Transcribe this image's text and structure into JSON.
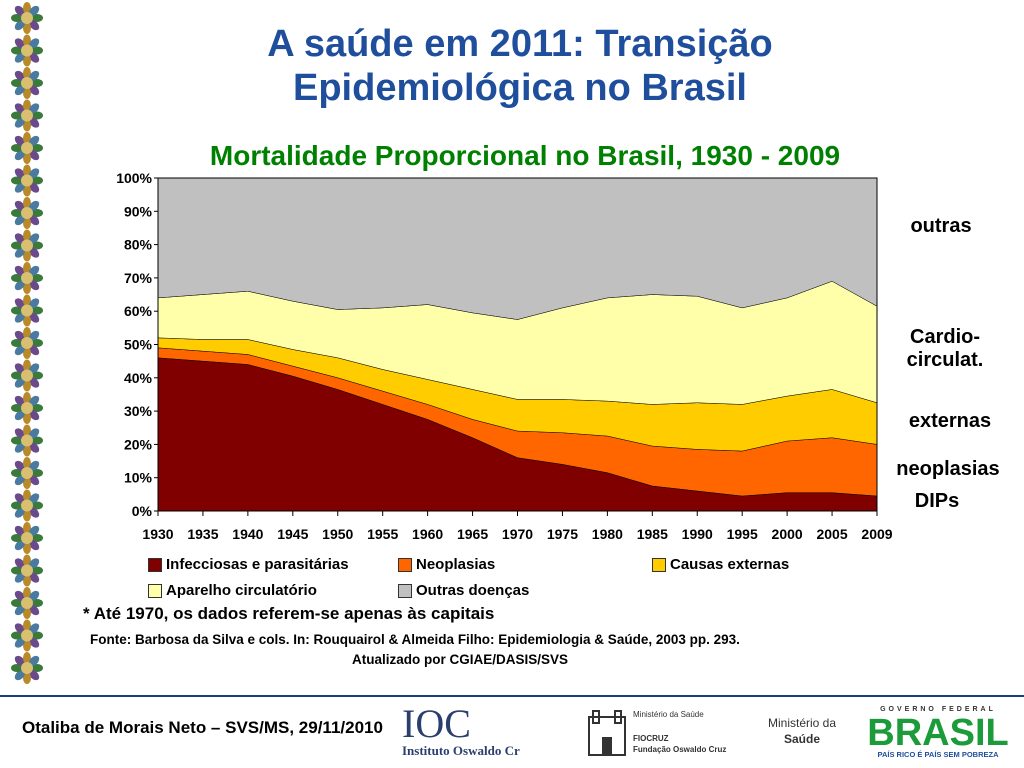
{
  "slide": {
    "title_line1": "A saúde em 2011: Transição",
    "title_line2": "Epidemiológica no Brasil",
    "chart_title": "Mortalidade Proporcional no Brasil, 1930 - 2009",
    "side_labels": [
      "outras",
      "Cardio-",
      "circulat.",
      "externas",
      "neoplasias",
      "DIPs"
    ],
    "note": "* Até 1970, os dados referem-se apenas às capitais",
    "source_line1": "Fonte: Barbosa da Silva e cols. In: Rouquairol & Almeida Filho: Epidemiologia & Saúde, 2003 pp. 293.",
    "source_line2": "Atualizado por CGIAE/DASIS/SVS",
    "footer": "Otaliba de Morais Neto – SVS/MS, 29/11/2010",
    "logos": {
      "ioc": "IOC",
      "ioc_sub": "Instituto Oswaldo Cruz",
      "fiocruz_top": "Ministério da Saúde",
      "fiocruz": "FIOCRUZ",
      "fiocruz_sub": "Fundação Oswaldo Cruz",
      "ms_line1": "Ministério da",
      "ms_line2": "Saúde",
      "brasil_top": "GOVERNO FEDERAL",
      "brasil": "BRASIL",
      "brasil_sub": "PAÍS RICO É PAÍS SEM POBREZA"
    }
  },
  "chart_data": {
    "type": "area",
    "stacked": true,
    "x": [
      "1930",
      "1935",
      "1940",
      "1945",
      "1950",
      "1955",
      "1960",
      "1965",
      "1970",
      "1975",
      "1980",
      "1985",
      "1990",
      "1995",
      "2000",
      "2005",
      "2009"
    ],
    "ylim": [
      0,
      100
    ],
    "yticks": [
      "0%",
      "10%",
      "20%",
      "30%",
      "40%",
      "50%",
      "60%",
      "70%",
      "80%",
      "90%",
      "100%"
    ],
    "series": [
      {
        "name": "Infecciosas e parasitárias",
        "color": "#800000",
        "values": [
          46,
          45,
          44,
          40.5,
          36.5,
          32,
          27.5,
          22,
          16,
          14,
          11.5,
          7.5,
          6,
          4.5,
          5.5,
          5.5,
          4.5
        ]
      },
      {
        "name": "Neoplasias",
        "color": "#ff6600",
        "values": [
          3,
          3,
          3,
          3,
          3.5,
          4,
          4.5,
          5.5,
          8,
          9.5,
          11,
          12,
          12.5,
          13.5,
          15.5,
          16.5,
          15.5
        ]
      },
      {
        "name": "Causas externas",
        "color": "#ffcc00",
        "values": [
          3,
          3.5,
          4.5,
          5,
          6,
          6.5,
          7.5,
          9,
          9.5,
          10,
          10.5,
          12.5,
          14,
          14,
          13.5,
          14.5,
          12.5
        ]
      },
      {
        "name": "Aparelho circulatório",
        "color": "#ffffaa",
        "values": [
          12,
          13.5,
          14.5,
          14.5,
          14.5,
          18.5,
          22.5,
          23,
          24,
          27.5,
          31,
          33,
          32,
          29,
          29.5,
          32.5,
          29
        ]
      },
      {
        "name": "Outras doenças",
        "color": "#c0c0c0",
        "values": [
          36,
          35,
          34,
          37,
          39.5,
          39,
          38,
          40.5,
          42.5,
          39,
          36,
          35,
          35.5,
          39,
          36,
          31,
          38.5
        ]
      }
    ],
    "grid": false,
    "legend_position": "bottom"
  }
}
